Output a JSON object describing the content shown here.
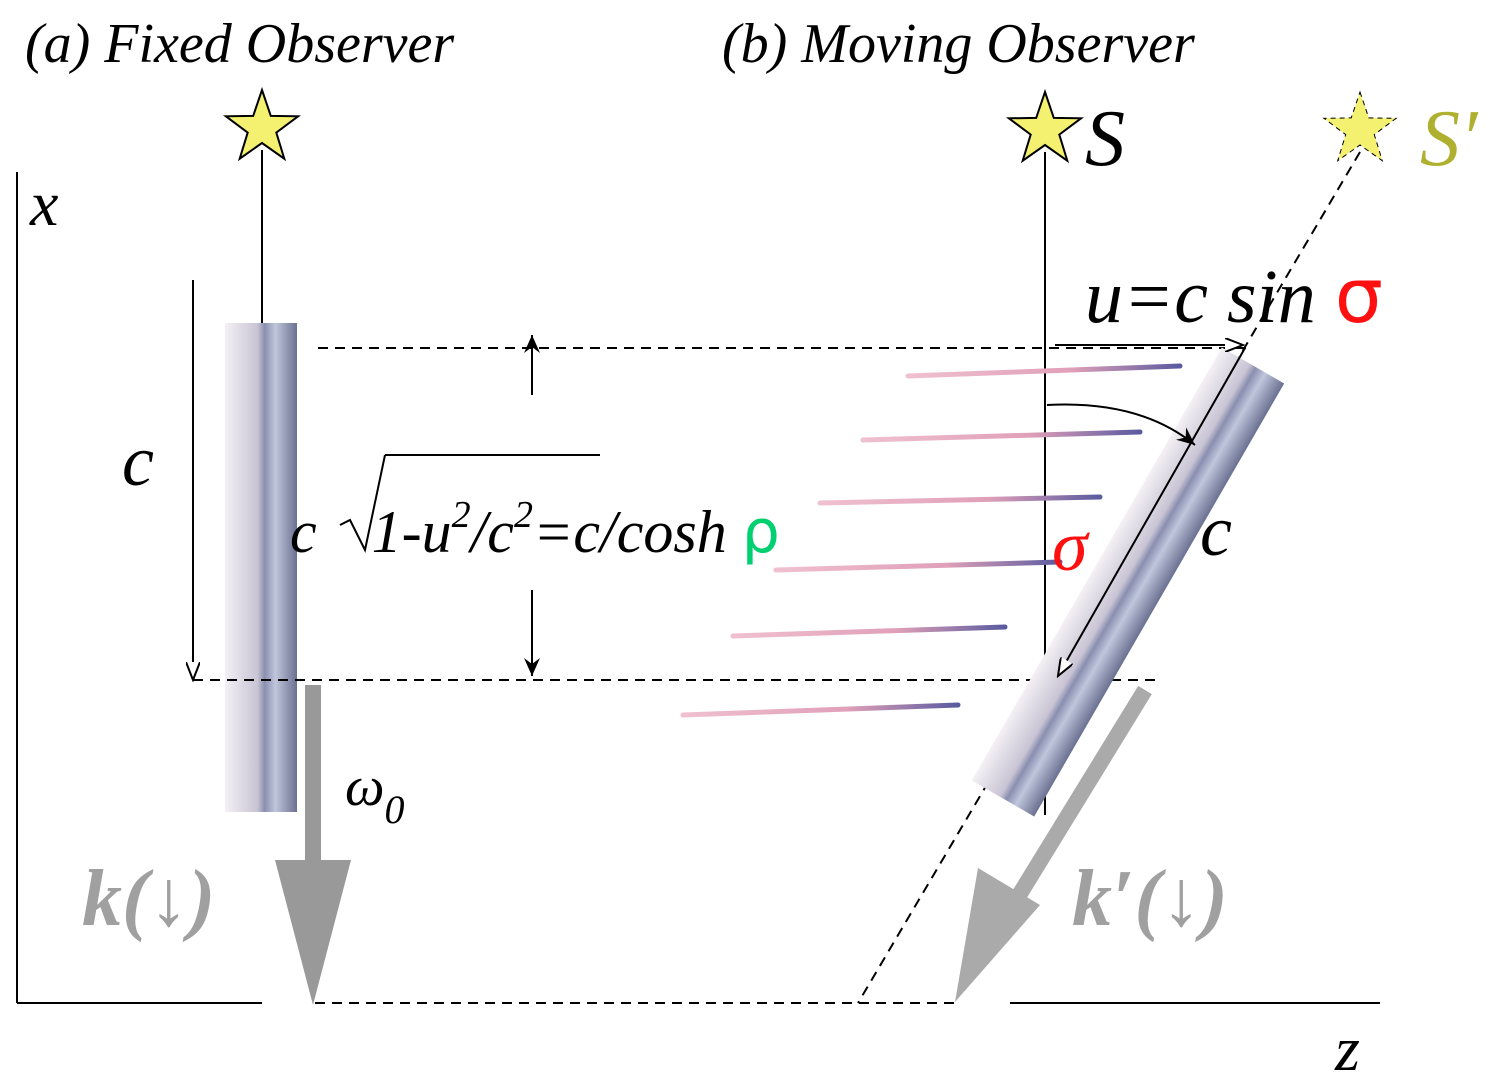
{
  "panels": [
    {
      "title": "(a) Fixed Observer"
    },
    {
      "title": "(b) Moving Observer"
    }
  ],
  "axes": {
    "x": "x",
    "z": "z"
  },
  "stars": [
    {
      "label": "S"
    },
    {
      "label": "S′"
    }
  ],
  "labels": {
    "c_left": "c",
    "omega": "ω",
    "omega_sub": "0",
    "k": "k(↓)",
    "k_prime": "k′(↓)",
    "sigma": "σ",
    "c_right": "c"
  },
  "velocity": {
    "text": "u=c sin ",
    "symbol": "σ"
  },
  "formula": {
    "lead": "c",
    "radicand": "1-u",
    "exp1": "2",
    "mid": "/c",
    "exp2": "2",
    "rest": "=c/cosh ",
    "symbol": "ρ"
  }
}
